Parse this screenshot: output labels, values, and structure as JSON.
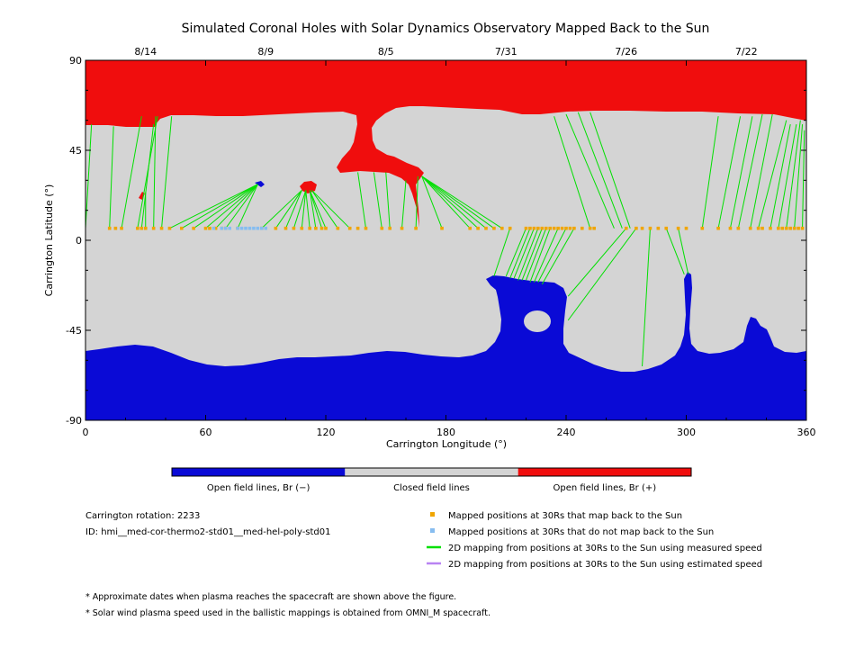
{
  "chart_data": {
    "type": "map",
    "title": "Simulated Coronal Holes with Solar Dynamics Observatory Mapped Back to the Sun",
    "xlabel": "Carrington Longitude (°)",
    "ylabel": "Carrington Latitude (°)",
    "xlim": [
      0,
      360
    ],
    "ylim": [
      -90,
      90
    ],
    "x_ticks": [
      "0",
      "60",
      "120",
      "180",
      "240",
      "300",
      "360"
    ],
    "y_ticks": [
      "90",
      "45",
      "0",
      "-45",
      "-90"
    ],
    "top_dates": [
      {
        "label": "8/14",
        "lon": 30
      },
      {
        "label": "8/9",
        "lon": 90
      },
      {
        "label": "8/5",
        "lon": 150
      },
      {
        "label": "7/31",
        "lon": 210
      },
      {
        "label": "7/26",
        "lon": 270
      },
      {
        "label": "7/22",
        "lon": 330
      }
    ],
    "colorbar": [
      {
        "label": "Open field lines, Br (−)",
        "color": "#0a0ad6"
      },
      {
        "label": "Closed field lines",
        "color": "#d4d4d4"
      },
      {
        "label": "Open field lines, Br (+)",
        "color": "#f00d0d"
      }
    ],
    "mapped_lat": 6,
    "mapped_lons": [
      12,
      15,
      18,
      26,
      28,
      30,
      34,
      38,
      42,
      48,
      54,
      60,
      62,
      65,
      68,
      70,
      76,
      88,
      95,
      100,
      104,
      108,
      112,
      115,
      118,
      120,
      126,
      132,
      136,
      140,
      148,
      152,
      158,
      165,
      178,
      192,
      196,
      200,
      204,
      208,
      212,
      220,
      222,
      224,
      226,
      228,
      230,
      232,
      234,
      236,
      238,
      240,
      242,
      244,
      248,
      252,
      254,
      270,
      275,
      278,
      282,
      286,
      290,
      296,
      300,
      308,
      316,
      322,
      326,
      332,
      336,
      338,
      342,
      346,
      348,
      350,
      352,
      354,
      356,
      358
    ],
    "unmapped_lons": [
      64,
      68,
      70,
      72,
      76,
      78,
      80,
      82,
      84,
      86,
      88,
      90
    ],
    "field_lines": [
      {
        "from_lon": 0,
        "from_lat": 6,
        "to_lon": 3,
        "to_lat": 58
      },
      {
        "from_lon": 12,
        "from_lat": 6,
        "to_lon": 14,
        "to_lat": 57
      },
      {
        "from_lon": 18,
        "from_lat": 6,
        "to_lon": 28,
        "to_lat": 62
      },
      {
        "from_lon": 26,
        "from_lat": 6,
        "to_lon": 36,
        "to_lat": 62
      },
      {
        "from_lon": 28,
        "from_lat": 6,
        "to_lon": 34,
        "to_lat": 58
      },
      {
        "from_lon": 30,
        "from_lat": 6,
        "to_lon": 30,
        "to_lat": 24
      },
      {
        "from_lon": 34,
        "from_lat": 6,
        "to_lon": 35,
        "to_lat": 62
      },
      {
        "from_lon": 38,
        "from_lat": 6,
        "to_lon": 43,
        "to_lat": 62
      },
      {
        "from_lon": 42,
        "from_lat": 6,
        "to_lon": 86,
        "to_lat": 28
      },
      {
        "from_lon": 48,
        "from_lat": 6,
        "to_lon": 86,
        "to_lat": 28
      },
      {
        "from_lon": 54,
        "from_lat": 6,
        "to_lon": 86,
        "to_lat": 28
      },
      {
        "from_lon": 60,
        "from_lat": 6,
        "to_lon": 86,
        "to_lat": 28
      },
      {
        "from_lon": 65,
        "from_lat": 6,
        "to_lon": 86,
        "to_lat": 28
      },
      {
        "from_lon": 70,
        "from_lat": 6,
        "to_lon": 86,
        "to_lat": 28
      },
      {
        "from_lon": 76,
        "from_lat": 6,
        "to_lon": 86,
        "to_lat": 28
      },
      {
        "from_lon": 88,
        "from_lat": 6,
        "to_lon": 108,
        "to_lat": 25
      },
      {
        "from_lon": 95,
        "from_lat": 6,
        "to_lon": 108,
        "to_lat": 25
      },
      {
        "from_lon": 100,
        "from_lat": 6,
        "to_lon": 108,
        "to_lat": 25
      },
      {
        "from_lon": 104,
        "from_lat": 6,
        "to_lon": 110,
        "to_lat": 25
      },
      {
        "from_lon": 108,
        "from_lat": 6,
        "to_lon": 110,
        "to_lat": 25
      },
      {
        "from_lon": 112,
        "from_lat": 6,
        "to_lon": 110,
        "to_lat": 25
      },
      {
        "from_lon": 115,
        "from_lat": 6,
        "to_lon": 112,
        "to_lat": 25
      },
      {
        "from_lon": 118,
        "from_lat": 6,
        "to_lon": 112,
        "to_lat": 25
      },
      {
        "from_lon": 120,
        "from_lat": 6,
        "to_lon": 112,
        "to_lat": 25
      },
      {
        "from_lon": 126,
        "from_lat": 6,
        "to_lon": 113,
        "to_lat": 25
      },
      {
        "from_lon": 132,
        "from_lat": 6,
        "to_lon": 113,
        "to_lat": 25
      },
      {
        "from_lon": 140,
        "from_lat": 6,
        "to_lon": 136,
        "to_lat": 34
      },
      {
        "from_lon": 148,
        "from_lat": 6,
        "to_lon": 144,
        "to_lat": 34
      },
      {
        "from_lon": 152,
        "from_lat": 6,
        "to_lon": 150,
        "to_lat": 34
      },
      {
        "from_lon": 158,
        "from_lat": 6,
        "to_lon": 160,
        "to_lat": 30
      },
      {
        "from_lon": 165,
        "from_lat": 6,
        "to_lon": 166,
        "to_lat": 32
      },
      {
        "from_lon": 178,
        "from_lat": 6,
        "to_lon": 168,
        "to_lat": 32
      },
      {
        "from_lon": 192,
        "from_lat": 6,
        "to_lon": 168,
        "to_lat": 32
      },
      {
        "from_lon": 196,
        "from_lat": 6,
        "to_lon": 168,
        "to_lat": 32
      },
      {
        "from_lon": 200,
        "from_lat": 6,
        "to_lon": 168,
        "to_lat": 32
      },
      {
        "from_lon": 204,
        "from_lat": 6,
        "to_lon": 168,
        "to_lat": 32
      },
      {
        "from_lon": 208,
        "from_lat": 6,
        "to_lon": 168,
        "to_lat": 32
      },
      {
        "from_lon": 212,
        "from_lat": 6,
        "to_lon": 204,
        "to_lat": -18
      },
      {
        "from_lon": 220,
        "from_lat": 6,
        "to_lon": 210,
        "to_lat": -18
      },
      {
        "from_lon": 222,
        "from_lat": 6,
        "to_lon": 212,
        "to_lat": -19
      },
      {
        "from_lon": 224,
        "from_lat": 6,
        "to_lon": 214,
        "to_lat": -19
      },
      {
        "from_lon": 226,
        "from_lat": 6,
        "to_lon": 216,
        "to_lat": -20
      },
      {
        "from_lon": 228,
        "from_lat": 6,
        "to_lon": 218,
        "to_lat": -20
      },
      {
        "from_lon": 230,
        "from_lat": 6,
        "to_lon": 220,
        "to_lat": -20
      },
      {
        "from_lon": 232,
        "from_lat": 6,
        "to_lon": 222,
        "to_lat": -21
      },
      {
        "from_lon": 236,
        "from_lat": 6,
        "to_lon": 224,
        "to_lat": -21
      },
      {
        "from_lon": 240,
        "from_lat": 6,
        "to_lon": 226,
        "to_lat": -21
      },
      {
        "from_lon": 244,
        "from_lat": 6,
        "to_lon": 228,
        "to_lat": -22
      },
      {
        "from_lon": 270,
        "from_lat": 6,
        "to_lon": 241,
        "to_lat": -28
      },
      {
        "from_lon": 275,
        "from_lat": 6,
        "to_lon": 241,
        "to_lat": -40
      },
      {
        "from_lon": 282,
        "from_lat": 6,
        "to_lon": 278,
        "to_lat": -63
      },
      {
        "from_lon": 290,
        "from_lat": 6,
        "to_lon": 299,
        "to_lat": -17
      },
      {
        "from_lon": 296,
        "from_lat": 6,
        "to_lon": 301,
        "to_lat": -17
      },
      {
        "from_lon": 252,
        "from_lat": 6,
        "to_lon": 234,
        "to_lat": 62
      },
      {
        "from_lon": 264,
        "from_lat": 6,
        "to_lon": 240,
        "to_lat": 63
      },
      {
        "from_lon": 268,
        "from_lat": 6,
        "to_lon": 246,
        "to_lat": 64
      },
      {
        "from_lon": 272,
        "from_lat": 6,
        "to_lon": 252,
        "to_lat": 64
      },
      {
        "from_lon": 308,
        "from_lat": 6,
        "to_lon": 316,
        "to_lat": 62
      },
      {
        "from_lon": 316,
        "from_lat": 6,
        "to_lon": 327,
        "to_lat": 62
      },
      {
        "from_lon": 322,
        "from_lat": 6,
        "to_lon": 333,
        "to_lat": 62
      },
      {
        "from_lon": 326,
        "from_lat": 6,
        "to_lon": 338,
        "to_lat": 63
      },
      {
        "from_lon": 332,
        "from_lat": 6,
        "to_lon": 343,
        "to_lat": 63
      },
      {
        "from_lon": 336,
        "from_lat": 6,
        "to_lon": 350,
        "to_lat": 60
      },
      {
        "from_lon": 342,
        "from_lat": 6,
        "to_lon": 352,
        "to_lat": 58
      },
      {
        "from_lon": 346,
        "from_lat": 6,
        "to_lon": 355,
        "to_lat": 58
      },
      {
        "from_lon": 350,
        "from_lat": 6,
        "to_lon": 357,
        "to_lat": 60
      },
      {
        "from_lon": 354,
        "from_lat": 6,
        "to_lon": 358,
        "to_lat": 58
      },
      {
        "from_lon": 358,
        "from_lat": 6,
        "to_lon": 359,
        "to_lat": 55
      }
    ]
  },
  "info": {
    "rotation": "Carrington rotation: 2233",
    "id": "ID: hmi__med-cor-thermo2-std01__med-hel-poly-std01"
  },
  "legend": [
    {
      "text": "Mapped positions at 30Rs that map back to the Sun",
      "color": "#f0a500",
      "kind": "square"
    },
    {
      "text": "Mapped positions at 30Rs that do not map back to the Sun",
      "color": "#87bdf0",
      "kind": "square"
    },
    {
      "text": "2D mapping from positions at 30Rs to the Sun using measured speed",
      "color": "#00e000",
      "kind": "line"
    },
    {
      "text": "2D mapping from positions at 30Rs to the Sun using estimated speed",
      "color": "#b883f2",
      "kind": "line"
    }
  ],
  "notes": [
    "* Approximate dates when plasma reaches the spacecraft are shown above the figure.",
    "* Solar wind plasma speed used in the ballistic mappings is obtained from OMNI_M spacecraft."
  ],
  "colors": {
    "positive": "#f00d0d",
    "negative": "#0a0ad6",
    "closed": "#d4d4d4",
    "line": "#00e000"
  }
}
